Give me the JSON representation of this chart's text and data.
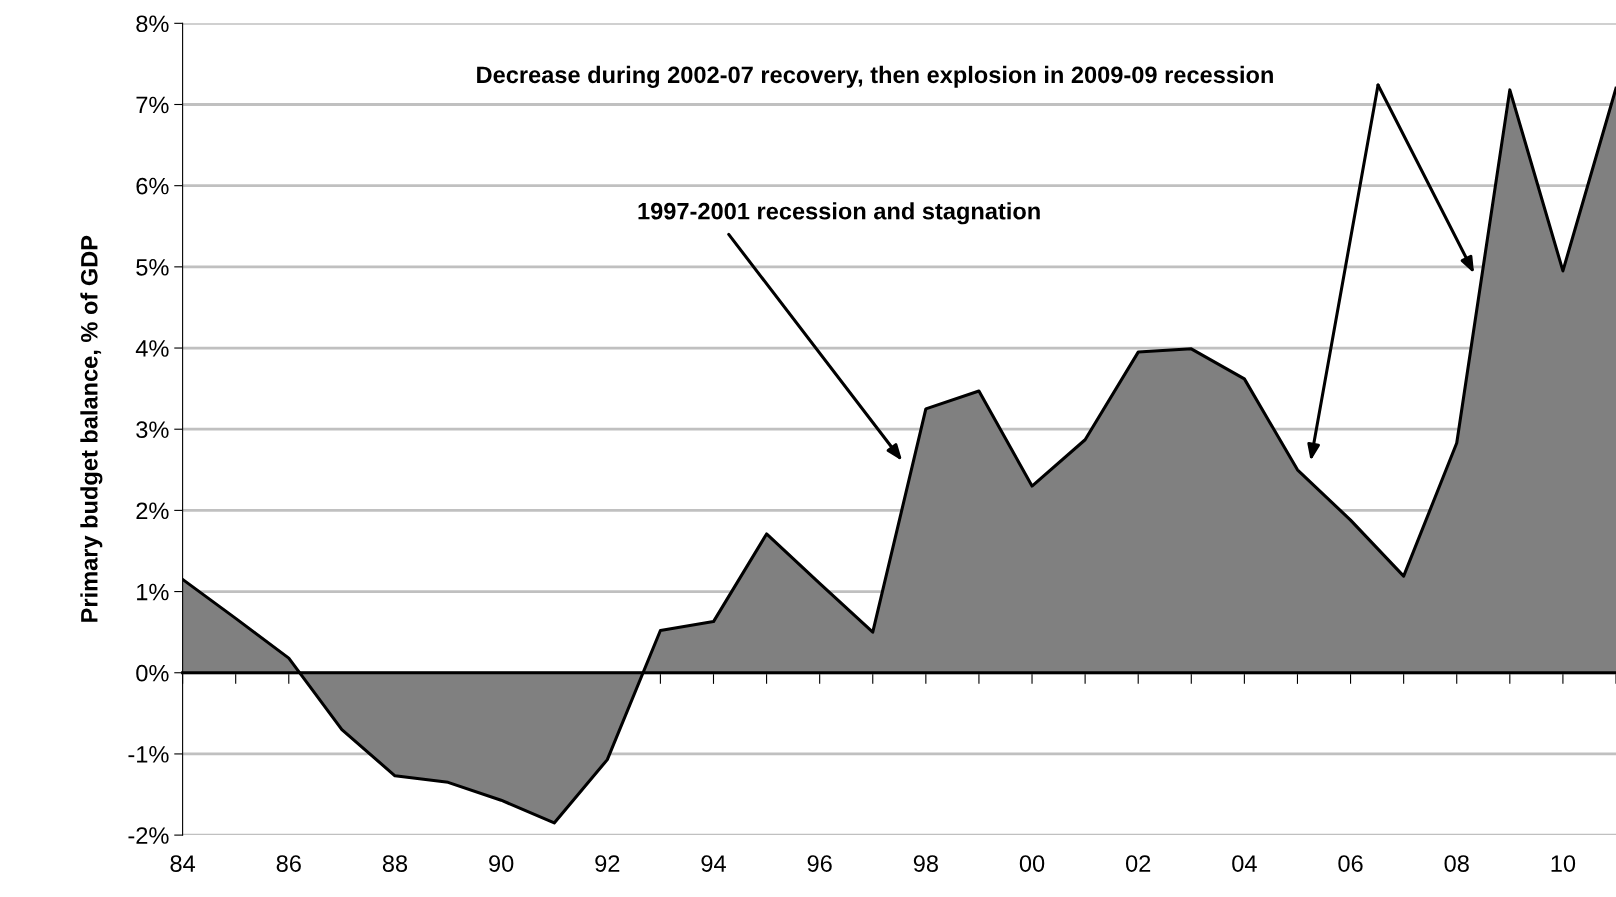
{
  "chart_data": {
    "type": "area",
    "ylabel": "Primary budget balance, % of GDP",
    "categories": [
      "84",
      null,
      "86",
      null,
      "88",
      null,
      "90",
      null,
      "92",
      null,
      "94",
      null,
      "96",
      null,
      "98",
      null,
      "00",
      null,
      "02",
      null,
      "04",
      null,
      "06",
      null,
      "08",
      null,
      "10",
      null
    ],
    "series": [
      {
        "color": "#808080",
        "values": [
          1.15,
          0.67,
          0.18,
          -0.7,
          -1.27,
          -1.35,
          -1.57,
          -1.85,
          -1.07,
          0.52,
          0.63,
          1.71,
          1.1,
          0.5,
          3.25,
          3.47,
          2.3,
          2.87,
          3.95,
          3.99,
          3.62,
          2.5,
          1.88,
          1.19,
          2.83,
          7.18,
          4.95,
          7.2
        ]
      }
    ],
    "ylim": [
      -2,
      8
    ],
    "yticks": [
      {
        "value": -2,
        "label": "-2%"
      },
      {
        "value": -1,
        "label": "-1%"
      },
      {
        "value": 0,
        "label": "0%"
      },
      {
        "value": 1,
        "label": "1%"
      },
      {
        "value": 2,
        "label": "2%"
      },
      {
        "value": 3,
        "label": "3%"
      },
      {
        "value": 4,
        "label": "4%"
      },
      {
        "value": 5,
        "label": "5%"
      },
      {
        "value": 6,
        "label": "6%"
      },
      {
        "value": 7,
        "label": "7%"
      },
      {
        "value": 8,
        "label": "8%"
      }
    ],
    "grid": "y",
    "legend": false,
    "annotations": [
      "1997-2001 recession and stagnation",
      "Decrease during 2002-07 recovery, then explosion in 2009-09 recession"
    ]
  }
}
